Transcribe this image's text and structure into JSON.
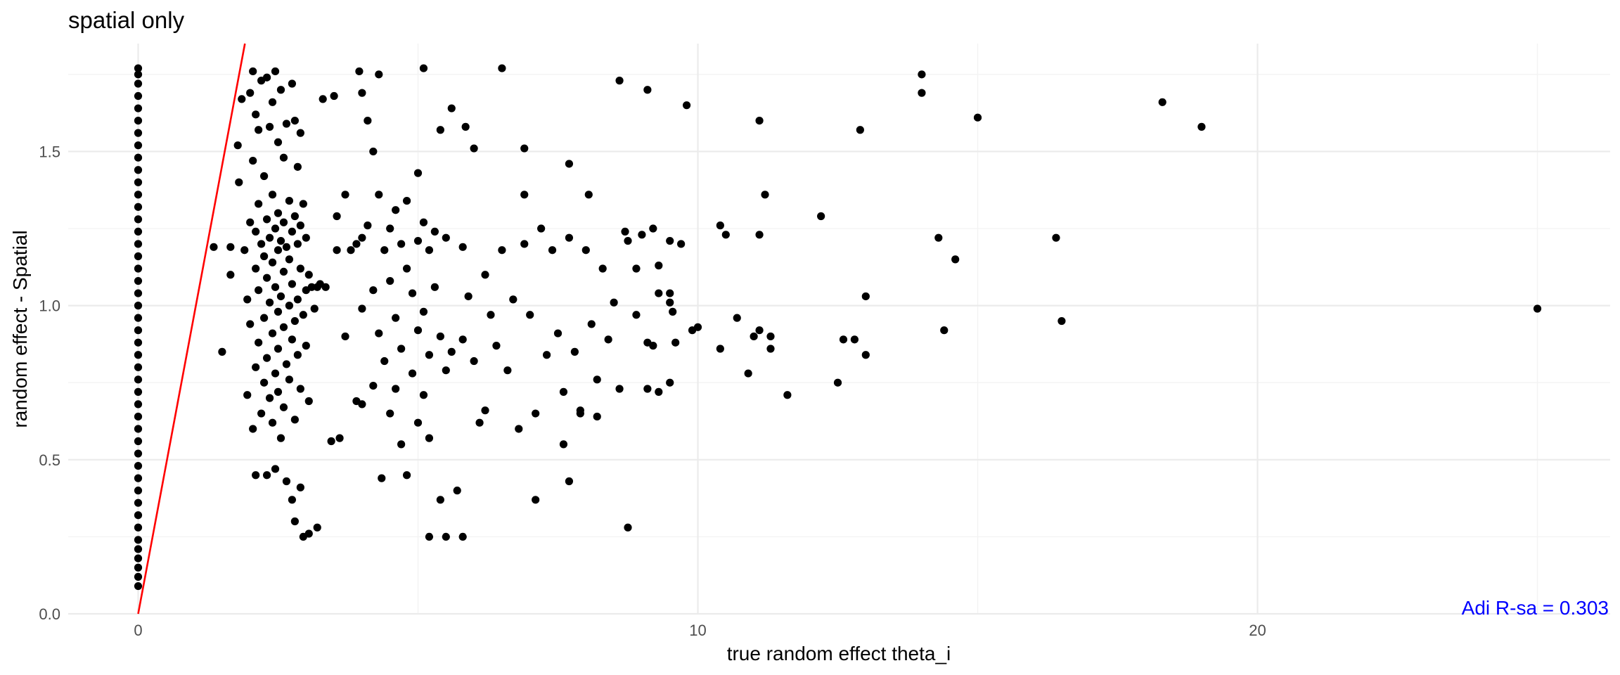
{
  "chart_data": {
    "type": "scatter",
    "title": "spatial only",
    "xlabel": "true random effect theta_i",
    "ylabel": "random effect - Spatial",
    "xlim": [
      -1.25,
      26.3
    ],
    "ylim": [
      0,
      1.85
    ],
    "x_ticks": [
      0,
      10,
      20
    ],
    "x_tick_labels": [
      "0",
      "10",
      "20"
    ],
    "y_ticks": [
      0.0,
      0.5,
      1.0,
      1.5
    ],
    "y_tick_labels": [
      "0.0",
      "0.5",
      "1.0",
      "1.5"
    ],
    "grid": true,
    "legend": "none",
    "point_color": "#000000",
    "reference_line": {
      "intercept": 0,
      "slope": 0.97,
      "color": "#ff0000"
    },
    "annotation": {
      "text": "Adi R-sa = 0.303",
      "color": "#0000ff",
      "position": "bottom-right"
    },
    "points": [
      [
        0,
        0.09
      ],
      [
        0,
        0.12
      ],
      [
        0,
        0.15
      ],
      [
        0,
        0.18
      ],
      [
        0,
        0.21
      ],
      [
        0,
        0.24
      ],
      [
        0,
        0.28
      ],
      [
        0,
        0.32
      ],
      [
        0,
        0.36
      ],
      [
        0,
        0.4
      ],
      [
        0,
        0.44
      ],
      [
        0,
        0.48
      ],
      [
        0,
        0.52
      ],
      [
        0,
        0.56
      ],
      [
        0,
        0.6
      ],
      [
        0,
        0.64
      ],
      [
        0,
        0.68
      ],
      [
        0,
        0.72
      ],
      [
        0,
        0.76
      ],
      [
        0,
        0.8
      ],
      [
        0,
        0.84
      ],
      [
        0,
        0.88
      ],
      [
        0,
        0.92
      ],
      [
        0,
        0.96
      ],
      [
        0,
        1.0
      ],
      [
        0,
        1.04
      ],
      [
        0,
        1.08
      ],
      [
        0,
        1.12
      ],
      [
        0,
        1.16
      ],
      [
        0,
        1.2
      ],
      [
        0,
        1.24
      ],
      [
        0,
        1.28
      ],
      [
        0,
        1.32
      ],
      [
        0,
        1.36
      ],
      [
        0,
        1.4
      ],
      [
        0,
        1.44
      ],
      [
        0,
        1.48
      ],
      [
        0,
        1.52
      ],
      [
        0,
        1.56
      ],
      [
        0,
        1.6
      ],
      [
        0,
        1.64
      ],
      [
        0,
        1.68
      ],
      [
        0,
        1.72
      ],
      [
        0,
        1.75
      ],
      [
        0,
        1.77
      ],
      [
        1.35,
        1.19
      ],
      [
        1.5,
        0.85
      ],
      [
        1.65,
        1.19
      ],
      [
        1.65,
        1.1
      ],
      [
        1.78,
        1.52
      ],
      [
        1.8,
        1.4
      ],
      [
        1.85,
        1.67
      ],
      [
        1.9,
        1.18
      ],
      [
        1.95,
        1.02
      ],
      [
        1.95,
        0.71
      ],
      [
        2.0,
        1.69
      ],
      [
        2.0,
        1.27
      ],
      [
        2.0,
        0.94
      ],
      [
        2.05,
        1.76
      ],
      [
        2.05,
        1.47
      ],
      [
        2.05,
        0.6
      ],
      [
        2.1,
        1.62
      ],
      [
        2.1,
        1.24
      ],
      [
        2.1,
        1.12
      ],
      [
        2.1,
        0.8
      ],
      [
        2.1,
        0.45
      ],
      [
        2.15,
        1.57
      ],
      [
        2.15,
        1.33
      ],
      [
        2.15,
        1.05
      ],
      [
        2.15,
        0.88
      ],
      [
        2.2,
        1.73
      ],
      [
        2.2,
        1.2
      ],
      [
        2.2,
        0.65
      ],
      [
        2.25,
        1.42
      ],
      [
        2.25,
        1.16
      ],
      [
        2.25,
        0.96
      ],
      [
        2.25,
        0.75
      ],
      [
        2.3,
        1.74
      ],
      [
        2.3,
        1.28
      ],
      [
        2.3,
        1.09
      ],
      [
        2.3,
        0.83
      ],
      [
        2.3,
        0.45
      ],
      [
        2.35,
        1.58
      ],
      [
        2.35,
        1.22
      ],
      [
        2.35,
        1.01
      ],
      [
        2.35,
        0.7
      ],
      [
        2.4,
        1.66
      ],
      [
        2.4,
        1.36
      ],
      [
        2.4,
        1.14
      ],
      [
        2.4,
        0.91
      ],
      [
        2.4,
        0.62
      ],
      [
        2.45,
        1.76
      ],
      [
        2.45,
        1.25
      ],
      [
        2.45,
        1.06
      ],
      [
        2.45,
        0.78
      ],
      [
        2.45,
        0.47
      ],
      [
        2.5,
        1.53
      ],
      [
        2.5,
        1.3
      ],
      [
        2.5,
        1.18
      ],
      [
        2.5,
        0.98
      ],
      [
        2.5,
        0.86
      ],
      [
        2.5,
        0.72
      ],
      [
        2.55,
        1.7
      ],
      [
        2.55,
        1.21
      ],
      [
        2.55,
        1.03
      ],
      [
        2.55,
        0.57
      ],
      [
        2.6,
        1.48
      ],
      [
        2.6,
        1.27
      ],
      [
        2.6,
        1.11
      ],
      [
        2.6,
        0.93
      ],
      [
        2.6,
        0.67
      ],
      [
        2.65,
        1.59
      ],
      [
        2.65,
        1.19
      ],
      [
        2.65,
        0.81
      ],
      [
        2.65,
        0.43
      ],
      [
        2.7,
        1.34
      ],
      [
        2.7,
        1.15
      ],
      [
        2.7,
        1.0
      ],
      [
        2.7,
        0.76
      ],
      [
        2.75,
        1.72
      ],
      [
        2.75,
        1.24
      ],
      [
        2.75,
        1.07
      ],
      [
        2.75,
        0.89
      ],
      [
        2.75,
        0.37
      ],
      [
        2.8,
        1.6
      ],
      [
        2.8,
        1.29
      ],
      [
        2.8,
        0.95
      ],
      [
        2.8,
        0.63
      ],
      [
        2.8,
        0.3
      ],
      [
        2.85,
        1.45
      ],
      [
        2.85,
        1.2
      ],
      [
        2.85,
        1.02
      ],
      [
        2.85,
        0.84
      ],
      [
        2.9,
        1.56
      ],
      [
        2.9,
        1.26
      ],
      [
        2.9,
        1.12
      ],
      [
        2.9,
        0.73
      ],
      [
        2.9,
        0.41
      ],
      [
        2.95,
        1.33
      ],
      [
        2.95,
        0.97
      ],
      [
        2.95,
        0.25
      ],
      [
        3.0,
        1.22
      ],
      [
        3.0,
        1.05
      ],
      [
        3.0,
        0.87
      ],
      [
        3.05,
        1.1
      ],
      [
        3.05,
        0.69
      ],
      [
        3.05,
        0.26
      ],
      [
        3.1,
        1.06
      ],
      [
        3.15,
        0.99
      ],
      [
        3.2,
        1.06
      ],
      [
        3.2,
        0.28
      ],
      [
        3.25,
        1.07
      ],
      [
        3.35,
        1.06
      ],
      [
        3.45,
        0.56
      ],
      [
        3.55,
        1.29
      ],
      [
        3.55,
        1.18
      ],
      [
        3.6,
        0.57
      ],
      [
        3.7,
        1.36
      ],
      [
        3.7,
        0.9
      ],
      [
        3.8,
        1.18
      ],
      [
        3.9,
        1.2
      ],
      [
        3.9,
        0.69
      ],
      [
        4.0,
        1.22
      ],
      [
        4.0,
        0.99
      ],
      [
        4.0,
        0.68
      ],
      [
        4.1,
        1.6
      ],
      [
        4.1,
        1.26
      ],
      [
        4.2,
        1.5
      ],
      [
        4.2,
        1.05
      ],
      [
        4.2,
        0.74
      ],
      [
        4.3,
        1.36
      ],
      [
        4.3,
        0.91
      ],
      [
        4.35,
        0.44
      ],
      [
        4.4,
        1.18
      ],
      [
        4.4,
        0.82
      ],
      [
        4.5,
        1.25
      ],
      [
        4.5,
        1.08
      ],
      [
        4.5,
        0.65
      ],
      [
        4.6,
        1.31
      ],
      [
        4.6,
        0.96
      ],
      [
        4.6,
        0.73
      ],
      [
        4.7,
        1.2
      ],
      [
        4.7,
        0.86
      ],
      [
        4.7,
        0.55
      ],
      [
        4.8,
        1.34
      ],
      [
        4.8,
        1.12
      ],
      [
        4.8,
        0.45
      ],
      [
        4.9,
        1.04
      ],
      [
        4.9,
        0.78
      ],
      [
        5.0,
        1.43
      ],
      [
        5.0,
        1.21
      ],
      [
        5.0,
        0.92
      ],
      [
        5.0,
        0.62
      ],
      [
        5.1,
        1.27
      ],
      [
        5.1,
        0.98
      ],
      [
        5.1,
        0.71
      ],
      [
        5.2,
        1.18
      ],
      [
        5.2,
        0.84
      ],
      [
        5.2,
        0.57
      ],
      [
        5.3,
        1.24
      ],
      [
        5.3,
        1.06
      ],
      [
        5.4,
        1.57
      ],
      [
        5.4,
        0.9
      ],
      [
        5.4,
        0.37
      ],
      [
        5.5,
        1.22
      ],
      [
        5.5,
        0.79
      ],
      [
        5.6,
        0.85
      ],
      [
        5.7,
        0.4
      ],
      [
        5.8,
        1.19
      ],
      [
        5.8,
        0.89
      ],
      [
        5.9,
        1.03
      ],
      [
        6.0,
        0.82
      ],
      [
        6.1,
        0.62
      ],
      [
        6.2,
        1.1
      ],
      [
        6.3,
        0.97
      ],
      [
        6.4,
        0.87
      ],
      [
        6.5,
        1.18
      ],
      [
        6.6,
        0.79
      ],
      [
        6.7,
        1.02
      ],
      [
        6.8,
        0.6
      ],
      [
        6.9,
        1.2
      ],
      [
        7.0,
        0.97
      ],
      [
        7.1,
        0.65
      ],
      [
        7.2,
        1.25
      ],
      [
        7.3,
        0.84
      ],
      [
        7.4,
        1.18
      ],
      [
        7.5,
        0.91
      ],
      [
        7.6,
        0.72
      ],
      [
        7.7,
        1.22
      ],
      [
        7.8,
        0.85
      ],
      [
        7.9,
        0.66
      ],
      [
        8.0,
        1.18
      ],
      [
        8.1,
        0.94
      ],
      [
        8.2,
        0.76
      ],
      [
        8.3,
        1.12
      ],
      [
        8.4,
        0.89
      ],
      [
        8.5,
        1.01
      ],
      [
        8.6,
        0.73
      ],
      [
        8.75,
        1.21
      ],
      [
        8.9,
        0.97
      ],
      [
        9.1,
        0.88
      ],
      [
        9.3,
        1.04
      ],
      [
        9.5,
        0.75
      ],
      [
        9.7,
        1.2
      ],
      [
        9.9,
        0.92
      ],
      [
        3.95,
        1.76
      ],
      [
        4.3,
        1.75
      ],
      [
        4.0,
        1.69
      ],
      [
        3.5,
        1.68
      ],
      [
        3.3,
        1.67
      ],
      [
        5.1,
        1.77
      ],
      [
        6.5,
        1.77
      ],
      [
        8.6,
        1.73
      ],
      [
        9.1,
        1.7
      ],
      [
        9.8,
        1.65
      ],
      [
        11.1,
        1.6
      ],
      [
        12.9,
        1.57
      ],
      [
        14.0,
        1.75
      ],
      [
        14.0,
        1.69
      ],
      [
        15.0,
        1.61
      ],
      [
        18.3,
        1.66
      ],
      [
        19.0,
        1.58
      ],
      [
        5.6,
        1.64
      ],
      [
        6.0,
        1.51
      ],
      [
        5.85,
        1.58
      ],
      [
        7.7,
        1.46
      ],
      [
        6.9,
        1.51
      ],
      [
        8.05,
        1.36
      ],
      [
        6.9,
        1.36
      ],
      [
        11.2,
        1.36
      ],
      [
        10.4,
        1.26
      ],
      [
        10.5,
        1.23
      ],
      [
        11.1,
        1.23
      ],
      [
        14.3,
        1.22
      ],
      [
        16.4,
        1.22
      ],
      [
        14.6,
        1.15
      ],
      [
        9.5,
        1.21
      ],
      [
        9.0,
        1.23
      ],
      [
        9.2,
        1.25
      ],
      [
        12.2,
        1.29
      ],
      [
        13.0,
        1.03
      ],
      [
        10.0,
        0.93
      ],
      [
        10.7,
        0.96
      ],
      [
        10.4,
        0.86
      ],
      [
        11.0,
        0.9
      ],
      [
        11.1,
        0.92
      ],
      [
        11.3,
        0.9
      ],
      [
        11.3,
        0.86
      ],
      [
        12.6,
        0.89
      ],
      [
        12.8,
        0.89
      ],
      [
        13.0,
        0.84
      ],
      [
        14.4,
        0.92
      ],
      [
        16.5,
        0.95
      ],
      [
        10.9,
        0.78
      ],
      [
        11.6,
        0.71
      ],
      [
        12.5,
        0.75
      ],
      [
        9.3,
        0.72
      ],
      [
        9.1,
        0.73
      ],
      [
        9.6,
        0.88
      ],
      [
        9.2,
        0.87
      ],
      [
        9.55,
        0.98
      ],
      [
        9.5,
        1.01
      ],
      [
        9.5,
        1.04
      ],
      [
        8.9,
        1.12
      ],
      [
        8.7,
        1.24
      ],
      [
        9.3,
        1.13
      ],
      [
        7.7,
        0.43
      ],
      [
        8.75,
        0.28
      ],
      [
        7.1,
        0.37
      ],
      [
        5.2,
        0.25
      ],
      [
        5.5,
        0.25
      ],
      [
        5.8,
        0.25
      ],
      [
        6.2,
        0.66
      ],
      [
        7.6,
        0.55
      ],
      [
        7.9,
        0.65
      ],
      [
        8.2,
        0.64
      ],
      [
        25.0,
        0.99
      ]
    ]
  }
}
